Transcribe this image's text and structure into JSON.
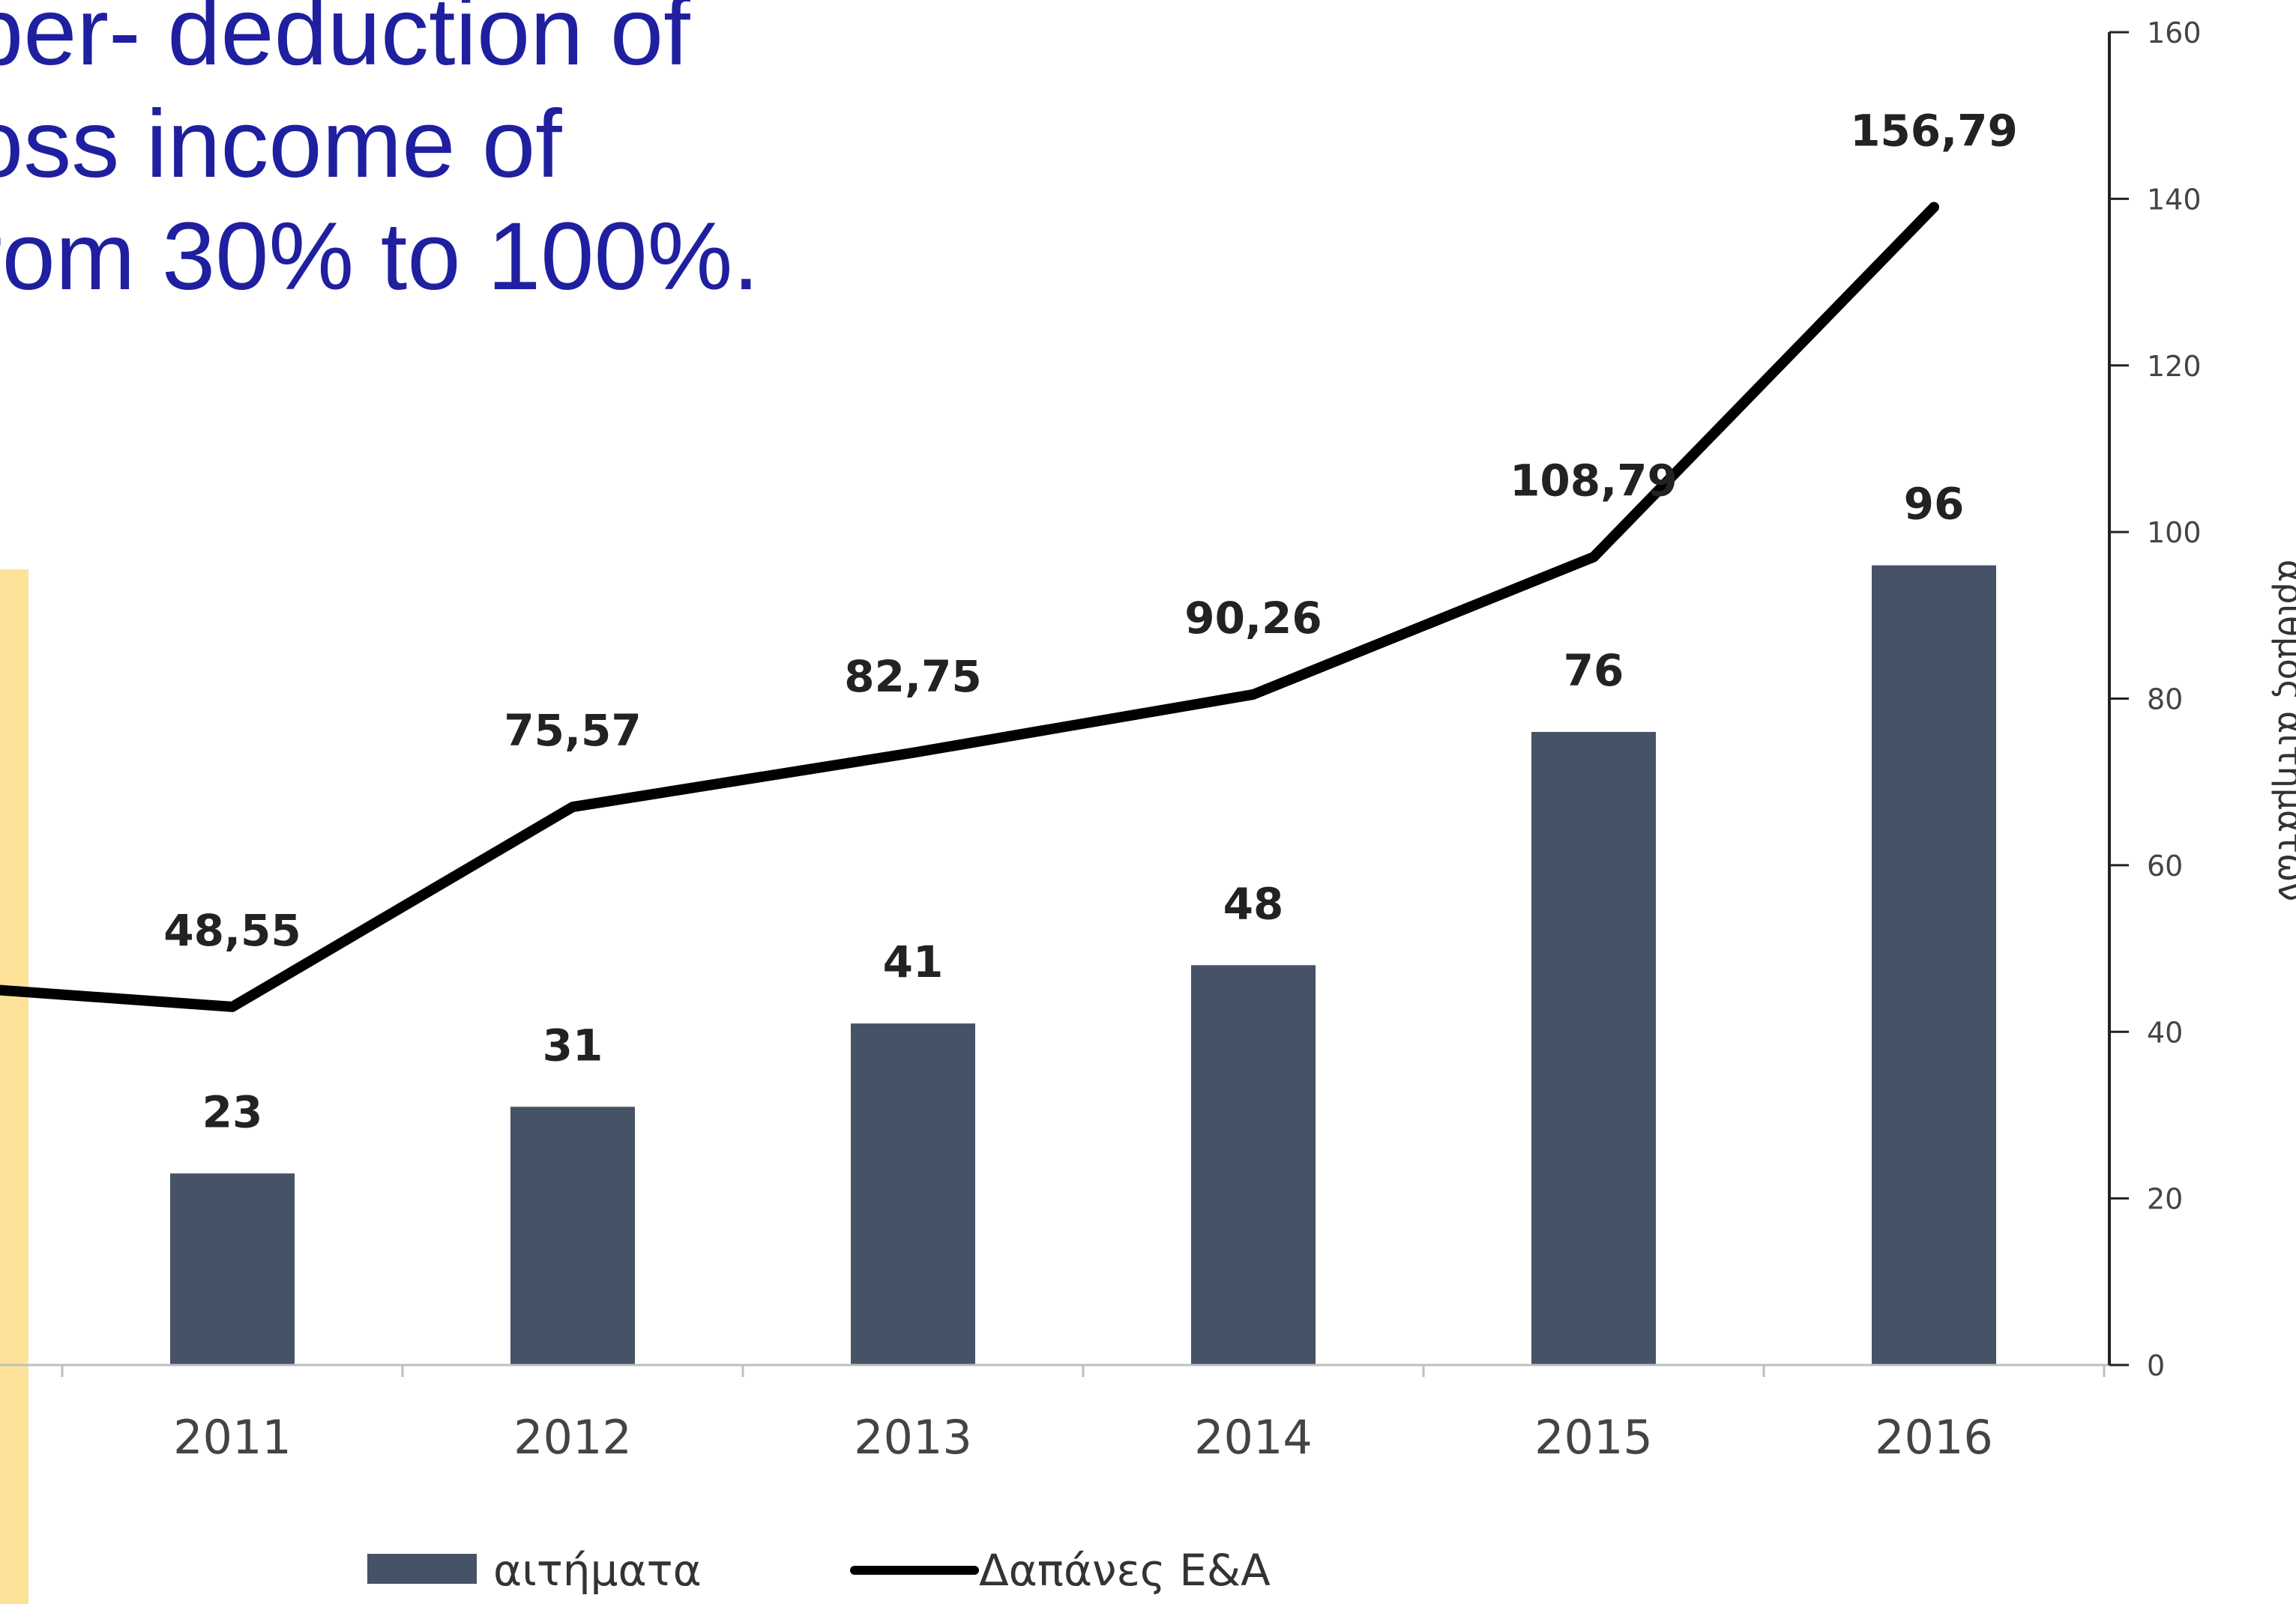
{
  "slide": {
    "headline_lines": [
      "ber- deduction of",
      "oss income of",
      "rom 30% to 100%."
    ],
    "headline_color": "#1f1fa0",
    "panel_color": "#fde39a"
  },
  "chart_data": {
    "type": "bar",
    "categories": [
      "2011",
      "2012",
      "2013",
      "2014",
      "2015",
      "2016"
    ],
    "series": [
      {
        "name": "αιτήματα",
        "type": "bar",
        "values": [
          23,
          31,
          41,
          48,
          76,
          96
        ],
        "value_labels": [
          "23",
          "31",
          "41",
          "48",
          "76",
          "96"
        ],
        "color": "#465266"
      },
      {
        "name": "Δαπάνες Ε&Α",
        "type": "line",
        "values": [
          43,
          67,
          73.5,
          80.5,
          97,
          139
        ],
        "value_labels": [
          "48,55",
          "75,57",
          "82,75",
          "90,26",
          "108,79",
          "156,79"
        ],
        "color": "#000000",
        "start_value": 45
      }
    ],
    "y_axis": {
      "position": "right",
      "min": 0,
      "max": 160,
      "ticks": [
        0,
        20,
        40,
        60,
        80,
        100,
        120,
        140,
        160
      ],
      "label": "αριθμός αιτημάτων"
    },
    "legend": {
      "placement": "bottom",
      "items": [
        "αιτήματα",
        "Δαπάνες Ε&Α"
      ]
    },
    "grid": false
  }
}
